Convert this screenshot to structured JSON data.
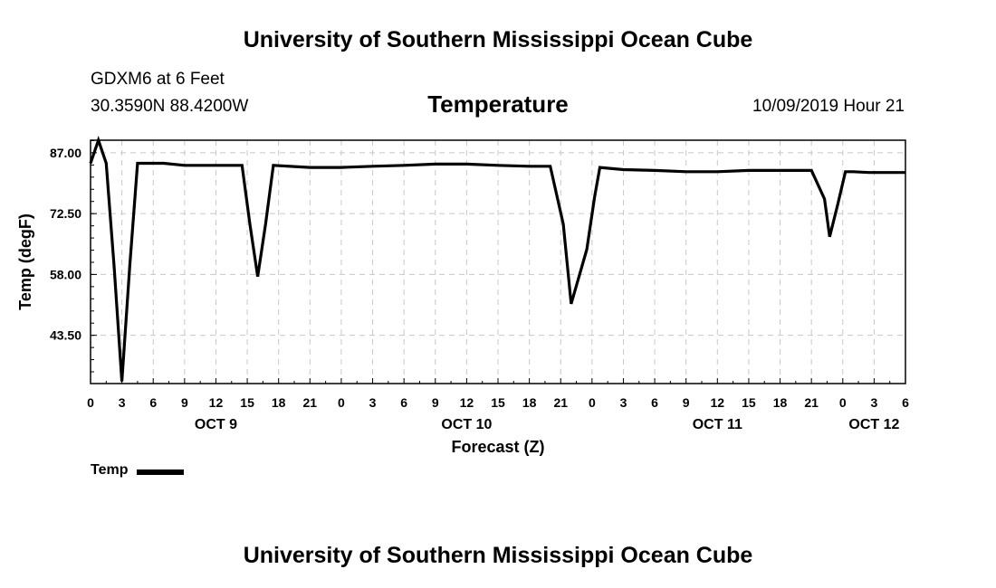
{
  "header": {
    "title": "University of Southern Mississippi Ocean Cube",
    "station": "GDXM6 at 6 Feet",
    "location": "30.3590N 88.4200W",
    "issued": "10/09/2019 Hour 21"
  },
  "footer": {
    "title": "University of Southern Mississippi Ocean Cube"
  },
  "legend": {
    "label": "Temp"
  },
  "colors": {
    "line": "#000000",
    "grid": "#c8c8c8",
    "background": "#ffffff"
  },
  "chart_data": {
    "type": "line",
    "title": "Temperature",
    "xlabel": "Forecast (Z)",
    "ylabel": "Temp (degF)",
    "units": "hours from 10/09/2019 00Z",
    "xlim": [
      0,
      78
    ],
    "ylim": [
      32,
      90
    ],
    "grid": true,
    "legend_position": "bottom-left",
    "y_ticks": [
      87.0,
      72.5,
      58.0,
      43.5
    ],
    "y_tick_labels": [
      "87.00",
      "72.50",
      "58.00",
      "43.50"
    ],
    "x_ticks": [
      0,
      3,
      6,
      9,
      12,
      15,
      18,
      21,
      24,
      27,
      30,
      33,
      36,
      39,
      42,
      45,
      48,
      51,
      54,
      57,
      60,
      63,
      66,
      69,
      72,
      75,
      78
    ],
    "x_tick_labels": [
      "0",
      "3",
      "6",
      "9",
      "12",
      "15",
      "18",
      "21",
      "0",
      "3",
      "6",
      "9",
      "12",
      "15",
      "18",
      "21",
      "0",
      "3",
      "6",
      "9",
      "12",
      "15",
      "18",
      "21",
      "0",
      "3",
      "6"
    ],
    "day_labels": [
      {
        "x": 12,
        "label": "OCT 9"
      },
      {
        "x": 36,
        "label": "OCT 10"
      },
      {
        "x": 60,
        "label": "OCT 11"
      },
      {
        "x": 75,
        "label": "OCT 12"
      }
    ],
    "series": [
      {
        "name": "Temp",
        "x": [
          0,
          0.75,
          1.5,
          2.25,
          3,
          3.75,
          4.5,
          7,
          9,
          12,
          14.5,
          15.25,
          16,
          16.75,
          17.5,
          21,
          24,
          27,
          30,
          33,
          36,
          39,
          42,
          44,
          45.25,
          46,
          47.5,
          48.25,
          48.75,
          51,
          54,
          57,
          60,
          63,
          66,
          69,
          70.25,
          70.75,
          71.5,
          72.25,
          73,
          74.5,
          76,
          78
        ],
        "values": [
          84.5,
          90.0,
          84.5,
          60.0,
          32.5,
          60.0,
          84.5,
          84.5,
          84.0,
          84.0,
          84.0,
          70.0,
          57.5,
          70.0,
          84.0,
          83.5,
          83.5,
          83.8,
          84.0,
          84.3,
          84.3,
          84.0,
          83.8,
          83.8,
          70.0,
          51.0,
          64.0,
          76.5,
          83.5,
          83.0,
          82.8,
          82.5,
          82.5,
          82.8,
          82.8,
          82.8,
          76.0,
          67.0,
          74.5,
          82.5,
          82.5,
          82.3,
          82.3,
          82.3
        ]
      }
    ]
  }
}
